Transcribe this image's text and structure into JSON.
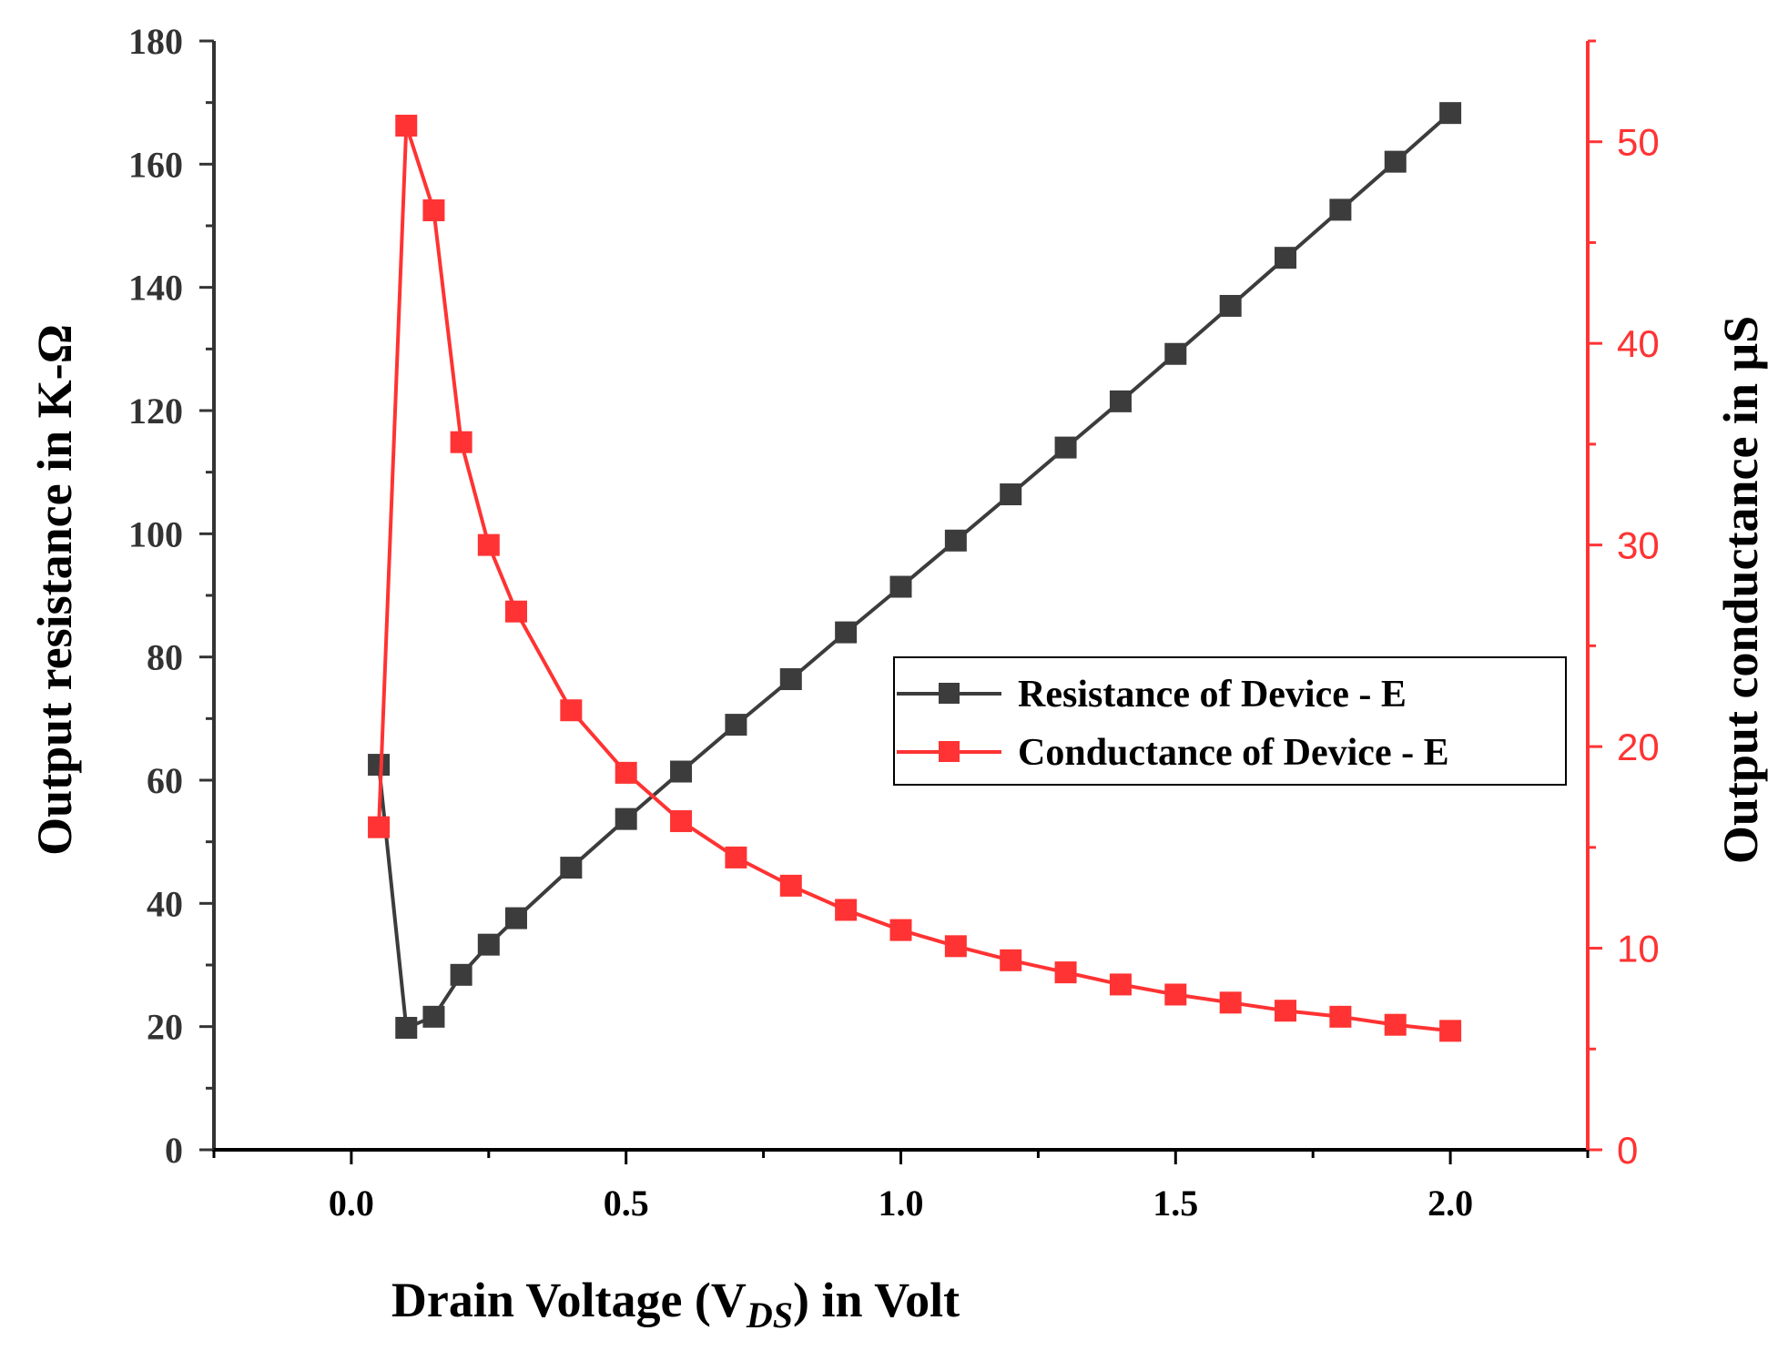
{
  "colors": {
    "resistance": "#3c3c3c",
    "conductance": "#ff3333",
    "left_axis": "#333333",
    "right_axis": "#ff3333",
    "frame": "#000000"
  },
  "chart_data": {
    "type": "line",
    "title": "",
    "xlabel": {
      "prefix": "Drain Voltage (V",
      "subscript": "DS",
      "suffix": ") in Volt"
    },
    "ylabel_left": "Output resistance in K-Ω",
    "ylabel_right": "Output conductance in μS",
    "xlim": [
      -0.25,
      2.25
    ],
    "ylim_left": [
      0,
      180
    ],
    "ylim_right": [
      0,
      55
    ],
    "x_ticks": [
      "0.0",
      "0.5",
      "1.0",
      "1.5",
      "2.0"
    ],
    "y_left_ticks": [
      "0",
      "20",
      "40",
      "60",
      "80",
      "100",
      "120",
      "140",
      "160",
      "180"
    ],
    "y_right_ticks": [
      "0",
      "10",
      "20",
      "30",
      "40",
      "50"
    ],
    "grid": false,
    "legend_position": "center-right",
    "series": [
      {
        "name": "Resistance of Device - E",
        "axis": "left",
        "marker": "square",
        "x": [
          0.05,
          0.1,
          0.15,
          0.2,
          0.25,
          0.3,
          0.4,
          0.5,
          0.6,
          0.7,
          0.8,
          0.9,
          1.0,
          1.1,
          1.2,
          1.3,
          1.4,
          1.5,
          1.6,
          1.7,
          1.8,
          1.9,
          2.0
        ],
        "values": [
          62.5,
          19.8,
          21.6,
          28.4,
          33.3,
          37.6,
          45.8,
          53.7,
          61.4,
          69.0,
          76.4,
          84.0,
          91.4,
          98.9,
          106.4,
          114.0,
          121.5,
          129.2,
          137.0,
          144.8,
          152.6,
          160.4,
          168.3
        ]
      },
      {
        "name": "Conductance of Device - E",
        "axis": "right",
        "marker": "square",
        "x": [
          0.05,
          0.1,
          0.15,
          0.2,
          0.25,
          0.3,
          0.4,
          0.5,
          0.6,
          0.7,
          0.8,
          0.9,
          1.0,
          1.1,
          1.2,
          1.3,
          1.4,
          1.5,
          1.6,
          1.7,
          1.8,
          1.9,
          2.0
        ],
        "values": [
          16.0,
          50.8,
          46.6,
          35.1,
          30.0,
          26.7,
          21.8,
          18.7,
          16.3,
          14.5,
          13.1,
          11.9,
          10.9,
          10.1,
          9.4,
          8.8,
          8.2,
          7.7,
          7.3,
          6.9,
          6.6,
          6.2,
          5.9
        ]
      }
    ]
  }
}
